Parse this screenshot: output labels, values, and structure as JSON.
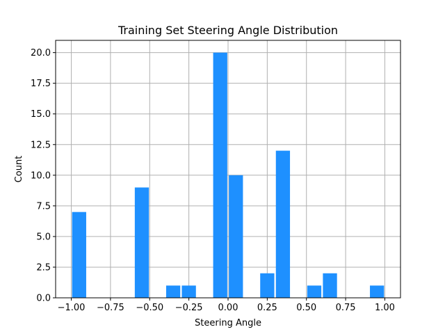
{
  "chart_data": {
    "type": "bar",
    "title": "Training Set Steering Angle Distribution",
    "xlabel": "Steering Angle",
    "ylabel": "Count",
    "bin_width": 0.1,
    "bars": [
      {
        "x_start": -1.0,
        "x_end": -0.9,
        "value": 7
      },
      {
        "x_start": -0.6,
        "x_end": -0.5,
        "value": 9
      },
      {
        "x_start": -0.4,
        "x_end": -0.3,
        "value": 1
      },
      {
        "x_start": -0.3,
        "x_end": -0.2,
        "value": 1
      },
      {
        "x_start": -0.1,
        "x_end": 0.0,
        "value": 20
      },
      {
        "x_start": 0.0,
        "x_end": 0.1,
        "value": 10
      },
      {
        "x_start": 0.2,
        "x_end": 0.3,
        "value": 2
      },
      {
        "x_start": 0.3,
        "x_end": 0.4,
        "value": 12
      },
      {
        "x_start": 0.5,
        "x_end": 0.6,
        "value": 1
      },
      {
        "x_start": 0.6,
        "x_end": 0.7,
        "value": 2
      },
      {
        "x_start": 0.9,
        "x_end": 1.0,
        "value": 1
      }
    ],
    "xlim": [
      -1.1,
      1.1
    ],
    "ylim": [
      0,
      21
    ],
    "xticks": [
      -1.0,
      -0.75,
      -0.5,
      -0.25,
      0.0,
      0.25,
      0.5,
      0.75,
      1.0
    ],
    "xtick_labels": [
      "−1.00",
      "−0.75",
      "−0.50",
      "−0.25",
      "0.00",
      "0.25",
      "0.50",
      "0.75",
      "1.00"
    ],
    "yticks": [
      0.0,
      2.5,
      5.0,
      7.5,
      10.0,
      12.5,
      15.0,
      17.5,
      20.0
    ],
    "ytick_labels": [
      "0.0",
      "2.5",
      "5.0",
      "7.5",
      "10.0",
      "12.5",
      "15.0",
      "17.5",
      "20.0"
    ],
    "grid": true,
    "bar_color": "#1e90ff",
    "grid_color": "#b0b0b0"
  }
}
